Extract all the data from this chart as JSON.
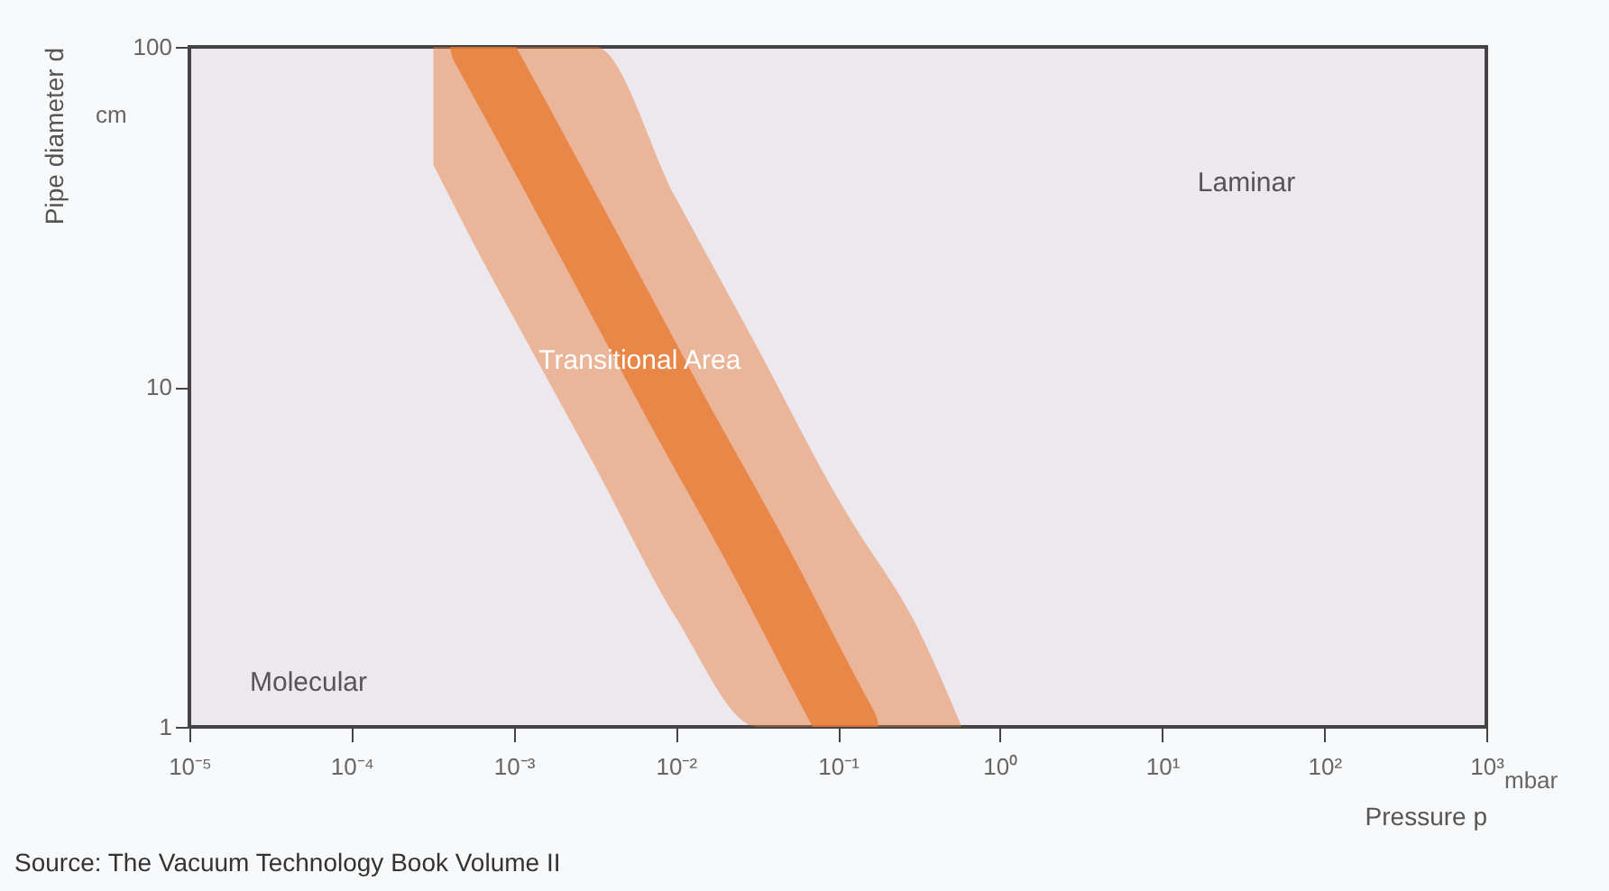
{
  "chart_data": {
    "type": "line",
    "xlabel": "Pressure p",
    "ylabel": "Pipe diameter d",
    "x": [
      0.00032,
      0.00063,
      0.001,
      0.0032,
      0.01,
      0.032,
      0.1,
      0.115,
      0.32,
      0.58
    ],
    "series": [
      {
        "color": "#e8782f",
        "values": [
          null,
          100,
          67,
          24,
          8.7,
          3.2,
          1.13,
          1,
          null,
          null
        ],
        "lower": [
          45,
          24,
          16,
          5.8,
          2.1,
          1,
          1,
          1,
          1,
          1
        ],
        "upper": [
          100,
          100,
          100,
          100,
          36,
          13,
          4.7,
          4.2,
          1.9,
          1
        ]
      }
    ],
    "log": "xy",
    "xlim": [
      1e-05,
      1000
    ],
    "ylim": [
      1,
      100
    ],
    "xticks": [
      {
        "value": 1e-05,
        "label": "10⁻⁵"
      },
      {
        "value": 0.0001,
        "label": "10⁻⁴"
      },
      {
        "value": 0.001,
        "label": "10⁻³"
      },
      {
        "value": 0.01,
        "label": "10⁻²"
      },
      {
        "value": 0.1,
        "label": "10⁻¹"
      },
      {
        "value": 1,
        "label": "10⁰"
      },
      {
        "value": 10,
        "label": "10¹"
      },
      {
        "value": 100,
        "label": "10²"
      },
      {
        "value": 1000,
        "label": "10³"
      }
    ],
    "yticks": [
      1,
      10,
      100
    ],
    "grid": false,
    "marker": "none",
    "line_style": "solid",
    "annotations": [
      "Laminar",
      {
        "text": "Transitional Area",
        "x": 0.006,
        "y": 12
      },
      "Molecular",
      "cm",
      "mbar",
      "Source: The Vacuum Technology Book Volume II"
    ]
  }
}
